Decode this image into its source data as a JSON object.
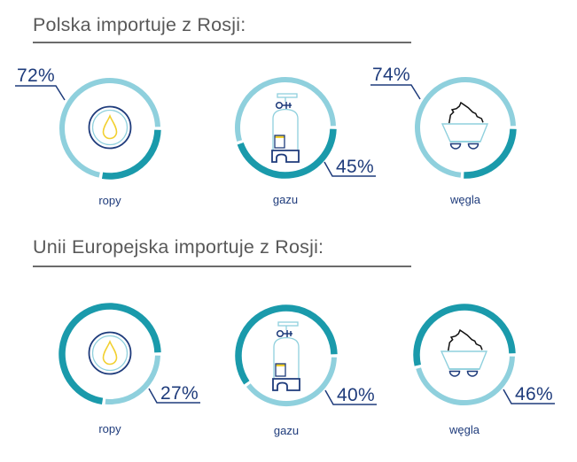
{
  "colors": {
    "light": "#8fd0dd",
    "dark": "#1a9aab",
    "navy": "#1e3b7b",
    "accent_yellow": "#f2d030",
    "heading": "#595959"
  },
  "chart_data": [
    {
      "type": "pie",
      "variant": "donut",
      "title": "Polska importuje z Rosji:",
      "categories": [
        "ropy",
        "gazu",
        "węgla"
      ],
      "values": [
        72,
        45,
        74
      ],
      "value_labels": [
        "72%",
        "45%",
        "74%"
      ],
      "unit": "%",
      "donuts": [
        {
          "category": "ropy",
          "icon": "oil-drop-icon",
          "label_position": "top-left",
          "segments": [
            {
              "tone": "dark",
              "pct": 28
            },
            {
              "tone": "light",
              "pct": 72
            }
          ]
        },
        {
          "category": "gazu",
          "icon": "gas-cylinder-icon",
          "label_position": "bottom-right",
          "segments": [
            {
              "tone": "dark",
              "pct": 45
            },
            {
              "tone": "light",
              "pct": 55
            }
          ]
        },
        {
          "category": "węgla",
          "icon": "coal-cart-icon",
          "label_position": "top-left",
          "segments": [
            {
              "tone": "dark",
              "pct": 26
            },
            {
              "tone": "light",
              "pct": 74
            }
          ]
        }
      ]
    },
    {
      "type": "pie",
      "variant": "donut",
      "title": "Unii Europejska importuje z Rosji:",
      "categories": [
        "ropy",
        "gazu",
        "węgla"
      ],
      "values": [
        27,
        40,
        46
      ],
      "value_labels": [
        "27%",
        "40%",
        "46%"
      ],
      "unit": "%",
      "donuts": [
        {
          "category": "ropy",
          "icon": "oil-drop-icon",
          "label_position": "bottom-right",
          "segments": [
            {
              "tone": "light",
              "pct": 27
            },
            {
              "tone": "dark",
              "pct": 73
            }
          ]
        },
        {
          "category": "gazu",
          "icon": "gas-cylinder-icon",
          "label_position": "bottom-right",
          "segments": [
            {
              "tone": "light",
              "pct": 40
            },
            {
              "tone": "dark",
              "pct": 60
            }
          ]
        },
        {
          "category": "węgla",
          "icon": "coal-cart-icon",
          "label_position": "bottom-right",
          "segments": [
            {
              "tone": "light",
              "pct": 46
            },
            {
              "tone": "dark",
              "pct": 54
            }
          ]
        }
      ]
    }
  ]
}
